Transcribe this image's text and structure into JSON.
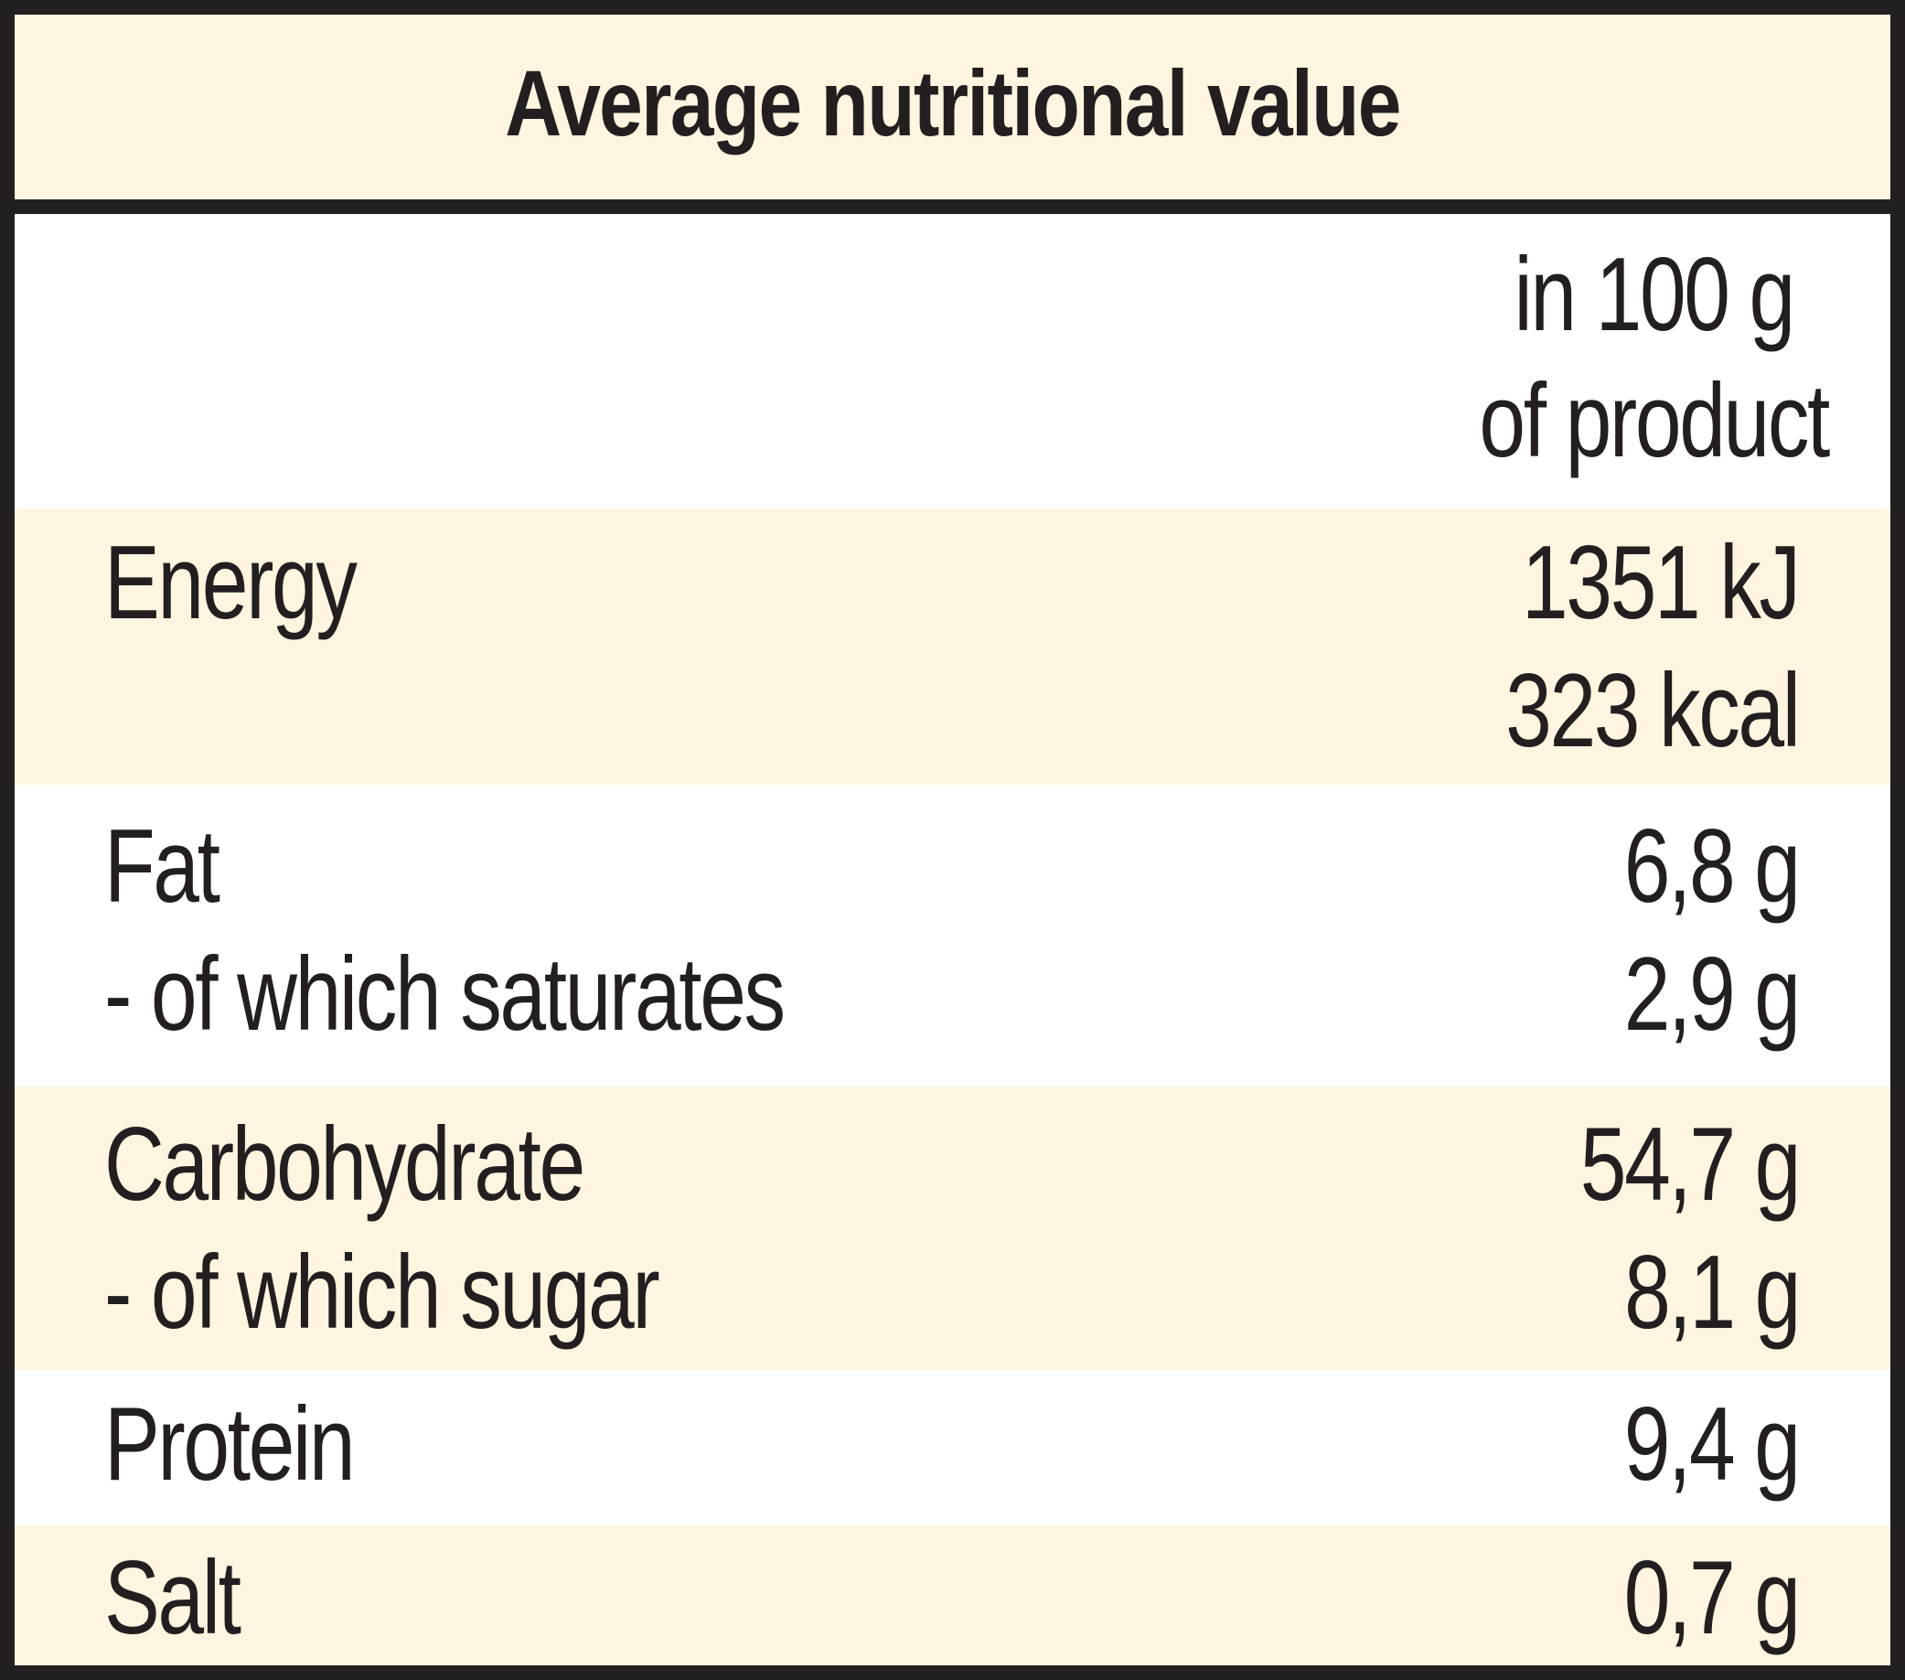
{
  "title": "Average nutritional value",
  "column_header": {
    "line1": "in 100 g",
    "line2": "of product"
  },
  "rows": [
    {
      "label": "Energy",
      "value": "1351 kJ",
      "value2": "323 kcal"
    },
    {
      "label": "Fat",
      "value": "6,8 g",
      "sub_label": "- of which saturates",
      "sub_value": "2,9 g"
    },
    {
      "label": "Carbohydrate",
      "value": "54,7 g",
      "sub_label": "- of which sugar",
      "sub_value": "8,1 g"
    },
    {
      "label": "Protein",
      "value": "9,4 g"
    },
    {
      "label": "Salt",
      "value": "0,7 g"
    }
  ],
  "colors": {
    "border": "#231f20",
    "shade": "#fdf5df",
    "background": "#ffffff",
    "text": "#231f20"
  }
}
